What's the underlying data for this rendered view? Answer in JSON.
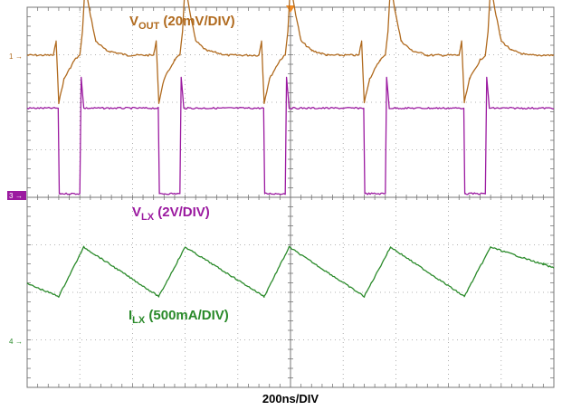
{
  "chart_data": {
    "type": "line",
    "xlabel": "200ns/DIV",
    "x_unit": "ns",
    "x_range": [
      0,
      2000
    ],
    "grid": true,
    "divisions": {
      "x": 10,
      "y": 8
    },
    "trigger_marker_color": "#f08a24",
    "level_arrow_color": "#2a8a2a",
    "series": [
      {
        "name": "VOUT (20mV/DIV)",
        "label_main": "V",
        "label_sub": "OUT",
        "label_rest": " (20mV/DIV)",
        "channel_marker": "1",
        "color": "#b06a1e",
        "unit": "mV",
        "values": [
          [
            0,
            0
          ],
          [
            100,
            0
          ],
          [
            110,
            6
          ],
          [
            120,
            -20
          ],
          [
            140,
            -10
          ],
          [
            180,
            -2
          ],
          [
            200,
            0
          ],
          [
            210,
            10
          ],
          [
            220,
            30
          ],
          [
            235,
            20
          ],
          [
            260,
            6
          ],
          [
            300,
            2
          ],
          [
            380,
            0
          ],
          [
            480,
            0
          ],
          [
            490,
            6
          ],
          [
            500,
            -20
          ],
          [
            520,
            -10
          ],
          [
            560,
            -2
          ],
          [
            580,
            0
          ],
          [
            590,
            10
          ],
          [
            600,
            30
          ],
          [
            615,
            20
          ],
          [
            640,
            6
          ],
          [
            680,
            2
          ],
          [
            760,
            0
          ],
          [
            880,
            0
          ],
          [
            890,
            6
          ],
          [
            900,
            -20
          ],
          [
            920,
            -10
          ],
          [
            960,
            -2
          ],
          [
            980,
            0
          ],
          [
            990,
            10
          ],
          [
            1000,
            30
          ],
          [
            1015,
            20
          ],
          [
            1040,
            6
          ],
          [
            1080,
            2
          ],
          [
            1140,
            0
          ],
          [
            1260,
            0
          ],
          [
            1270,
            6
          ],
          [
            1280,
            -20
          ],
          [
            1300,
            -10
          ],
          [
            1340,
            -2
          ],
          [
            1360,
            0
          ],
          [
            1370,
            10
          ],
          [
            1380,
            30
          ],
          [
            1395,
            20
          ],
          [
            1420,
            6
          ],
          [
            1460,
            2
          ],
          [
            1520,
            0
          ],
          [
            1640,
            0
          ],
          [
            1650,
            6
          ],
          [
            1660,
            -20
          ],
          [
            1680,
            -10
          ],
          [
            1720,
            -2
          ],
          [
            1740,
            0
          ],
          [
            1750,
            10
          ],
          [
            1760,
            30
          ],
          [
            1775,
            20
          ],
          [
            1800,
            6
          ],
          [
            1840,
            2
          ],
          [
            1900,
            0
          ],
          [
            2000,
            0
          ]
        ]
      },
      {
        "name": "VLX (2V/DIV)",
        "label_main": "V",
        "label_sub": "LX",
        "label_rest": " (2V/DIV)",
        "channel_marker": "3",
        "color": "#9b1aa0",
        "unit": "V",
        "values": [
          [
            0,
            3.6
          ],
          [
            118,
            3.6
          ],
          [
            122,
            0
          ],
          [
            200,
            0
          ],
          [
            205,
            4.9
          ],
          [
            215,
            3.6
          ],
          [
            498,
            3.6
          ],
          [
            502,
            0
          ],
          [
            580,
            0
          ],
          [
            585,
            4.9
          ],
          [
            595,
            3.6
          ],
          [
            898,
            3.6
          ],
          [
            902,
            0
          ],
          [
            980,
            0
          ],
          [
            985,
            4.9
          ],
          [
            995,
            3.6
          ],
          [
            1278,
            3.6
          ],
          [
            1282,
            0
          ],
          [
            1360,
            0
          ],
          [
            1365,
            4.9
          ],
          [
            1375,
            3.6
          ],
          [
            1658,
            3.6
          ],
          [
            1662,
            0
          ],
          [
            1740,
            0
          ],
          [
            1745,
            4.9
          ],
          [
            1755,
            3.6
          ],
          [
            2000,
            3.6
          ]
        ]
      },
      {
        "name": "ILX (500mA/DIV)",
        "label_main": "I",
        "label_sub": "LX",
        "label_rest": " (500mA/DIV)",
        "channel_marker": "4",
        "color": "#2a8a2a",
        "unit": "mA",
        "values": [
          [
            0,
            615
          ],
          [
            120,
            480
          ],
          [
            215,
            1000
          ],
          [
            500,
            480
          ],
          [
            600,
            1000
          ],
          [
            900,
            480
          ],
          [
            995,
            1000
          ],
          [
            1280,
            480
          ],
          [
            1380,
            1000
          ],
          [
            1660,
            480
          ],
          [
            1760,
            1000
          ],
          [
            2000,
            780
          ]
        ]
      }
    ]
  }
}
